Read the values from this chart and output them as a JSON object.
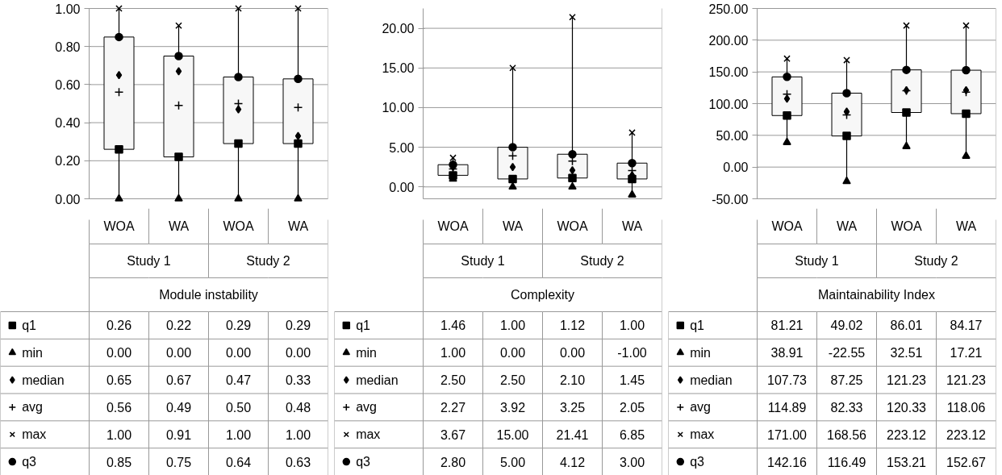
{
  "chart_data": [
    {
      "type": "box",
      "xlabel": "Module instability",
      "categories": [
        "WOA",
        "WA",
        "WOA",
        "WA"
      ],
      "annotations": [
        "Study 1",
        "Study 2"
      ],
      "ylim": [
        0,
        1
      ],
      "yticks": [
        {
          "value": 0,
          "label": "0.00"
        },
        {
          "value": 0.2,
          "label": "0.20"
        },
        {
          "value": 0.4,
          "label": "0.40"
        },
        {
          "value": 0.6,
          "label": "0.60"
        },
        {
          "value": 0.8,
          "label": "0.80"
        },
        {
          "value": 1,
          "label": "1.00"
        }
      ],
      "grid": "y",
      "legend": "bottom",
      "boxes": [
        {
          "low": 0,
          "q1": 0.26,
          "q3": 0.85,
          "high": 1
        },
        {
          "low": 0,
          "q1": 0.22,
          "q3": 0.75,
          "high": 0.91
        },
        {
          "low": 0,
          "q1": 0.29,
          "q3": 0.64,
          "high": 1
        },
        {
          "low": 0,
          "q1": 0.29,
          "q3": 0.63,
          "high": 1
        }
      ],
      "series": [
        {
          "name": "q1",
          "type": "scatter",
          "marker": "square",
          "color": "#000000",
          "values": [
            0.26,
            0.22,
            0.29,
            0.29
          ],
          "value_labels": [
            "0.26",
            "0.22",
            "0.29",
            "0.29"
          ]
        },
        {
          "name": "min",
          "type": "scatter",
          "marker": "triangle",
          "color": "#000000",
          "values": [
            0,
            0,
            0,
            0
          ],
          "value_labels": [
            "0.00",
            "0.00",
            "0.00",
            "0.00"
          ]
        },
        {
          "name": "median",
          "type": "scatter",
          "marker": "diamond",
          "color": "#000000",
          "values": [
            0.65,
            0.67,
            0.47,
            0.33
          ],
          "value_labels": [
            "0.65",
            "0.67",
            "0.47",
            "0.33"
          ]
        },
        {
          "name": "avg",
          "type": "scatter",
          "marker": "cross",
          "color": "#000000",
          "values": [
            0.56,
            0.49,
            0.5,
            0.48
          ],
          "value_labels": [
            "0.56",
            "0.49",
            "0.50",
            "0.48"
          ]
        },
        {
          "name": "max",
          "type": "scatter",
          "marker": "x",
          "color": "#000000",
          "values": [
            1,
            0.91,
            1,
            1
          ],
          "value_labels": [
            "1.00",
            "0.91",
            "1.00",
            "1.00"
          ]
        },
        {
          "name": "q3",
          "type": "scatter",
          "marker": "circle",
          "color": "#000000",
          "values": [
            0.85,
            0.75,
            0.64,
            0.63
          ],
          "value_labels": [
            "0.85",
            "0.75",
            "0.64",
            "0.63"
          ]
        }
      ]
    },
    {
      "type": "box",
      "xlabel": "Complexity",
      "categories": [
        "WOA",
        "WA",
        "WOA",
        "WA"
      ],
      "annotations": [
        "Study 1",
        "Study 2"
      ],
      "ylim": [
        -1.5,
        22.5
      ],
      "yticks": [
        {
          "value": 0,
          "label": "0.00"
        },
        {
          "value": 5,
          "label": "5.00"
        },
        {
          "value": 10,
          "label": "10.00"
        },
        {
          "value": 15,
          "label": "15.00"
        },
        {
          "value": 20,
          "label": "20.00"
        }
      ],
      "grid": "y",
      "legend": "bottom",
      "boxes": [
        {
          "low": 1.0,
          "q1": 1.46,
          "q3": 2.8,
          "high": 3.67
        },
        {
          "low": 0,
          "q1": 1.0,
          "q3": 5.0,
          "high": 15.0
        },
        {
          "low": 0,
          "q1": 1.12,
          "q3": 4.12,
          "high": 21.41
        },
        {
          "low": -1.0,
          "q1": 1.0,
          "q3": 3.0,
          "high": 6.85
        }
      ],
      "series": [
        {
          "name": "q1",
          "type": "scatter",
          "marker": "square",
          "color": "#000000",
          "values": [
            1.46,
            1.0,
            1.12,
            1.0
          ],
          "value_labels": [
            "1.46",
            "1.00",
            "1.12",
            "1.00"
          ]
        },
        {
          "name": "min",
          "type": "scatter",
          "marker": "triangle",
          "color": "#000000",
          "values": [
            1.0,
            0,
            0,
            -1.0
          ],
          "value_labels": [
            "1.00",
            "0.00",
            "0.00",
            "-1.00"
          ]
        },
        {
          "name": "median",
          "type": "scatter",
          "marker": "diamond",
          "color": "#000000",
          "values": [
            2.5,
            2.5,
            2.1,
            1.45
          ],
          "value_labels": [
            "2.50",
            "2.50",
            "2.10",
            "1.45"
          ]
        },
        {
          "name": "avg",
          "type": "scatter",
          "marker": "cross",
          "color": "#000000",
          "values": [
            2.27,
            3.92,
            3.25,
            2.05
          ],
          "value_labels": [
            "2.27",
            "3.92",
            "3.25",
            "2.05"
          ]
        },
        {
          "name": "max",
          "type": "scatter",
          "marker": "x",
          "color": "#000000",
          "values": [
            3.67,
            15.0,
            21.41,
            6.85
          ],
          "value_labels": [
            "3.67",
            "15.00",
            "21.41",
            "6.85"
          ]
        },
        {
          "name": "q3",
          "type": "scatter",
          "marker": "circle",
          "color": "#000000",
          "values": [
            2.8,
            5.0,
            4.12,
            3.0
          ],
          "value_labels": [
            "2.80",
            "5.00",
            "4.12",
            "3.00"
          ]
        }
      ]
    },
    {
      "type": "box",
      "xlabel": "Maintainability Index",
      "categories": [
        "WOA",
        "WA",
        "WOA",
        "WA"
      ],
      "annotations": [
        "Study 1",
        "Study 2"
      ],
      "ylim": [
        -50,
        250
      ],
      "yticks": [
        {
          "value": -50,
          "label": "-50.00"
        },
        {
          "value": 0,
          "label": "0.00"
        },
        {
          "value": 50,
          "label": "50.00"
        },
        {
          "value": 100,
          "label": "100.00"
        },
        {
          "value": 150,
          "label": "150.00"
        },
        {
          "value": 200,
          "label": "200.00"
        },
        {
          "value": 250,
          "label": "250.00"
        }
      ],
      "grid": "y",
      "legend": "bottom",
      "boxes": [
        {
          "low": 38.91,
          "q1": 81.21,
          "q3": 142.16,
          "high": 171.0
        },
        {
          "low": -22.55,
          "q1": 49.02,
          "q3": 116.49,
          "high": 168.56
        },
        {
          "low": 32.51,
          "q1": 86.01,
          "q3": 153.21,
          "high": 223.12
        },
        {
          "low": 17.21,
          "q1": 84.17,
          "q3": 152.67,
          "high": 223.12
        }
      ],
      "series": [
        {
          "name": "q1",
          "type": "scatter",
          "marker": "square",
          "color": "#000000",
          "values": [
            81.21,
            49.02,
            86.01,
            84.17
          ],
          "value_labels": [
            "81.21",
            "49.02",
            "86.01",
            "84.17"
          ]
        },
        {
          "name": "min",
          "type": "scatter",
          "marker": "triangle",
          "color": "#000000",
          "values": [
            38.91,
            -22.55,
            32.51,
            17.21
          ],
          "value_labels": [
            "38.91",
            "-22.55",
            "32.51",
            "17.21"
          ]
        },
        {
          "name": "median",
          "type": "scatter",
          "marker": "diamond",
          "color": "#000000",
          "values": [
            107.73,
            87.25,
            121.23,
            121.23
          ],
          "value_labels": [
            "107.73",
            "87.25",
            "121.23",
            "121.23"
          ]
        },
        {
          "name": "avg",
          "type": "scatter",
          "marker": "cross",
          "color": "#000000",
          "values": [
            114.89,
            82.33,
            120.33,
            118.06
          ],
          "value_labels": [
            "114.89",
            "82.33",
            "120.33",
            "118.06"
          ]
        },
        {
          "name": "max",
          "type": "scatter",
          "marker": "x",
          "color": "#000000",
          "values": [
            171.0,
            168.56,
            223.12,
            223.12
          ],
          "value_labels": [
            "171.00",
            "168.56",
            "223.12",
            "223.12"
          ]
        },
        {
          "name": "q3",
          "type": "scatter",
          "marker": "circle",
          "color": "#000000",
          "values": [
            142.16,
            116.49,
            153.21,
            152.67
          ],
          "value_labels": [
            "142.16",
            "116.49",
            "153.21",
            "152.67"
          ]
        }
      ]
    }
  ]
}
